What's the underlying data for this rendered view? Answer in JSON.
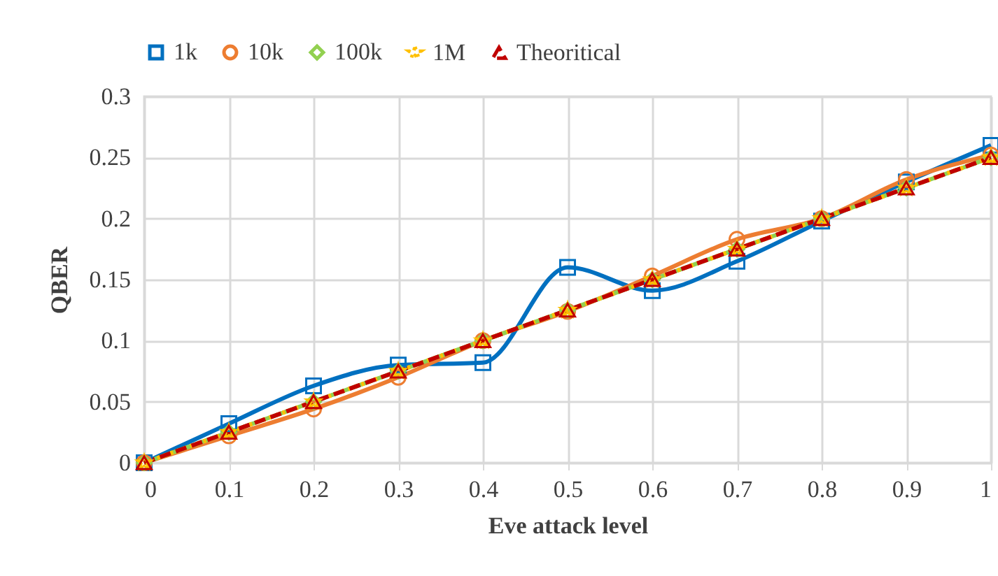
{
  "chart_data": {
    "type": "line",
    "xlabel": "Eve attack level",
    "ylabel": "QBER",
    "x": [
      0,
      0.1,
      0.2,
      0.3,
      0.4,
      0.5,
      0.6,
      0.7,
      0.8,
      0.9,
      1
    ],
    "series": [
      {
        "name": "1k",
        "color": "#0070c0",
        "marker": "square",
        "line_style": "solid",
        "values": [
          0,
          0.032,
          0.063,
          0.08,
          0.082,
          0.16,
          0.141,
          0.165,
          0.198,
          0.23,
          0.26
        ]
      },
      {
        "name": "10k",
        "color": "#ed7d31",
        "marker": "circle",
        "line_style": "solid",
        "values": [
          0,
          0.022,
          0.044,
          0.07,
          0.1,
          0.124,
          0.153,
          0.183,
          0.2,
          0.232,
          0.252
        ]
      },
      {
        "name": "100k",
        "color": "#92d050",
        "marker": "diamond",
        "line_style": "solid",
        "values": [
          0,
          0.025,
          0.05,
          0.075,
          0.1,
          0.125,
          0.15,
          0.175,
          0.2,
          0.225,
          0.25
        ]
      },
      {
        "name": "1M",
        "color": "#ffc000",
        "marker": "star",
        "line_style": "dotted",
        "values": [
          0,
          0.025,
          0.05,
          0.075,
          0.1,
          0.125,
          0.15,
          0.175,
          0.2,
          0.225,
          0.25
        ]
      },
      {
        "name": "Theoritical",
        "color": "#c00000",
        "marker": "triangle",
        "line_style": "dashed",
        "values": [
          0,
          0.025,
          0.05,
          0.075,
          0.1,
          0.125,
          0.15,
          0.175,
          0.2,
          0.225,
          0.25
        ]
      }
    ],
    "xlim": [
      0,
      1
    ],
    "xticks": [
      0,
      0.1,
      0.2,
      0.3,
      0.4,
      0.5,
      0.6,
      0.7,
      0.8,
      0.9,
      1
    ],
    "ylim": [
      0,
      0.3
    ],
    "yticks": [
      0,
      0.05,
      0.1,
      0.15,
      0.2,
      0.25,
      0.3
    ],
    "grid": true,
    "legend": "top"
  }
}
